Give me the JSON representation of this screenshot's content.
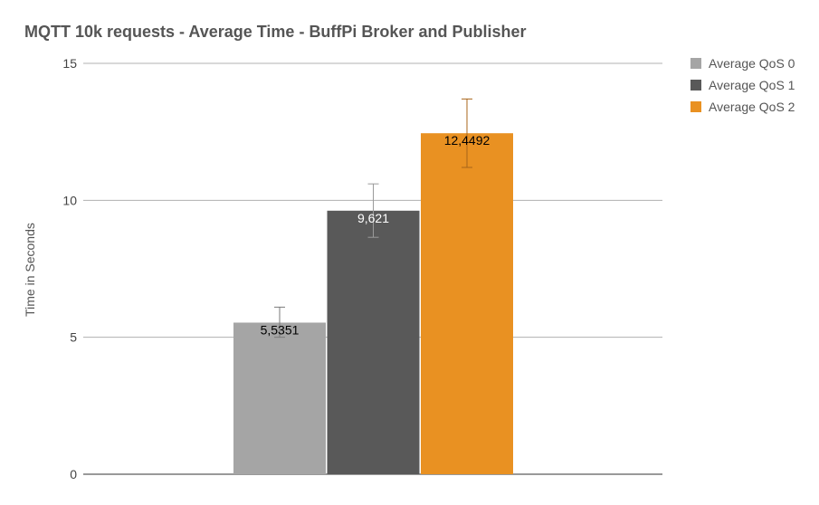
{
  "chart_data": {
    "type": "bar",
    "title": "MQTT 10k requests - Average Time - BuffPi Broker and Publisher",
    "xlabel": "",
    "ylabel": "Time in Seconds",
    "ylim": [
      0,
      15
    ],
    "yticks": [
      "0",
      "5",
      "10",
      "15"
    ],
    "ytick_values": [
      0,
      5,
      10,
      15
    ],
    "grid": true,
    "legend_position": "right",
    "series": [
      {
        "name": "Average QoS 0",
        "value": 5.5351,
        "label": "5,5351",
        "error": [
          5.0,
          6.1
        ],
        "color": "#a5a5a5",
        "label_color": "#000000",
        "error_color": "#7a7a7a"
      },
      {
        "name": "Average QoS 1",
        "value": 9.621,
        "label": "9,621",
        "error": [
          8.65,
          10.6
        ],
        "color": "#595959",
        "label_color": "#ffffff",
        "error_color": "#9a9a9a"
      },
      {
        "name": "Average QoS 2",
        "value": 12.4492,
        "label": "12,4492",
        "error": [
          11.2,
          13.7
        ],
        "color": "#e99122",
        "label_color": "#000000",
        "error_color": "#a8651a"
      }
    ]
  }
}
